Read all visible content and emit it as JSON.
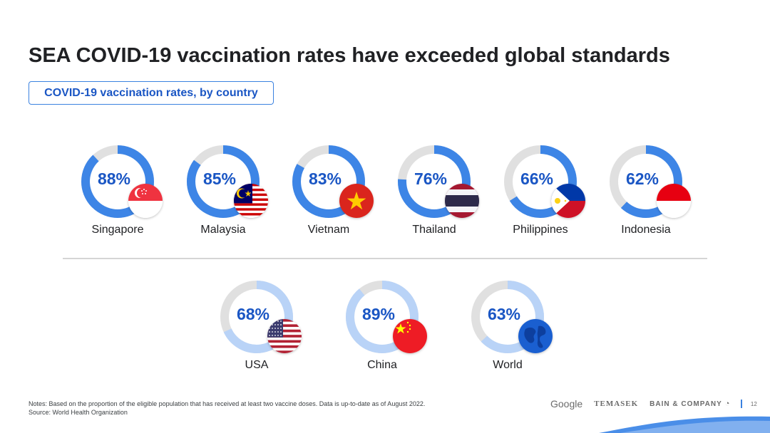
{
  "title": "SEA COVID-19 vaccination rates have exceeded global standards",
  "subtitle": "COVID-19 vaccination rates, by country",
  "chart_data": {
    "type": "donut",
    "title": "SEA COVID-19 vaccination rates have exceeded global standards",
    "subtitle": "COVID-19 vaccination rates, by country",
    "unit": "%",
    "groups": [
      {
        "name": "SEA",
        "items": [
          {
            "label": "Singapore",
            "value": 88,
            "display": "88%",
            "flag": "singapore-flag-icon"
          },
          {
            "label": "Malaysia",
            "value": 85,
            "display": "85%",
            "flag": "malaysia-flag-icon"
          },
          {
            "label": "Vietnam",
            "value": 83,
            "display": "83%",
            "flag": "vietnam-flag-icon"
          },
          {
            "label": "Thailand",
            "value": 76,
            "display": "76%",
            "flag": "thailand-flag-icon"
          },
          {
            "label": "Philippines",
            "value": 66,
            "display": "66%",
            "flag": "philippines-flag-icon"
          },
          {
            "label": "Indonesia",
            "value": 62,
            "display": "62%",
            "flag": "indonesia-flag-icon"
          }
        ]
      },
      {
        "name": "Global",
        "items": [
          {
            "label": "USA",
            "value": 68,
            "display": "68%",
            "flag": "usa-flag-icon"
          },
          {
            "label": "China",
            "value": 89,
            "display": "89%",
            "flag": "china-flag-icon"
          },
          {
            "label": "World",
            "value": 63,
            "display": "63%",
            "flag": "globe-icon"
          }
        ]
      }
    ],
    "colors": {
      "sea_ring": "#3d85e6",
      "global_ring": "#b9d3f7",
      "track": "#e0e0e0",
      "value_text": "#1a56c4"
    }
  },
  "notes": "Notes: Based on the proportion of the eligible population that has received at least two vaccine doses. Data is up-to-date as of August 2022.",
  "source": "Source: World Health Organization",
  "footer": {
    "google": "Google",
    "temasek": "TEMASEK",
    "bain": "BAIN & COMPANY",
    "page_number": "12"
  }
}
